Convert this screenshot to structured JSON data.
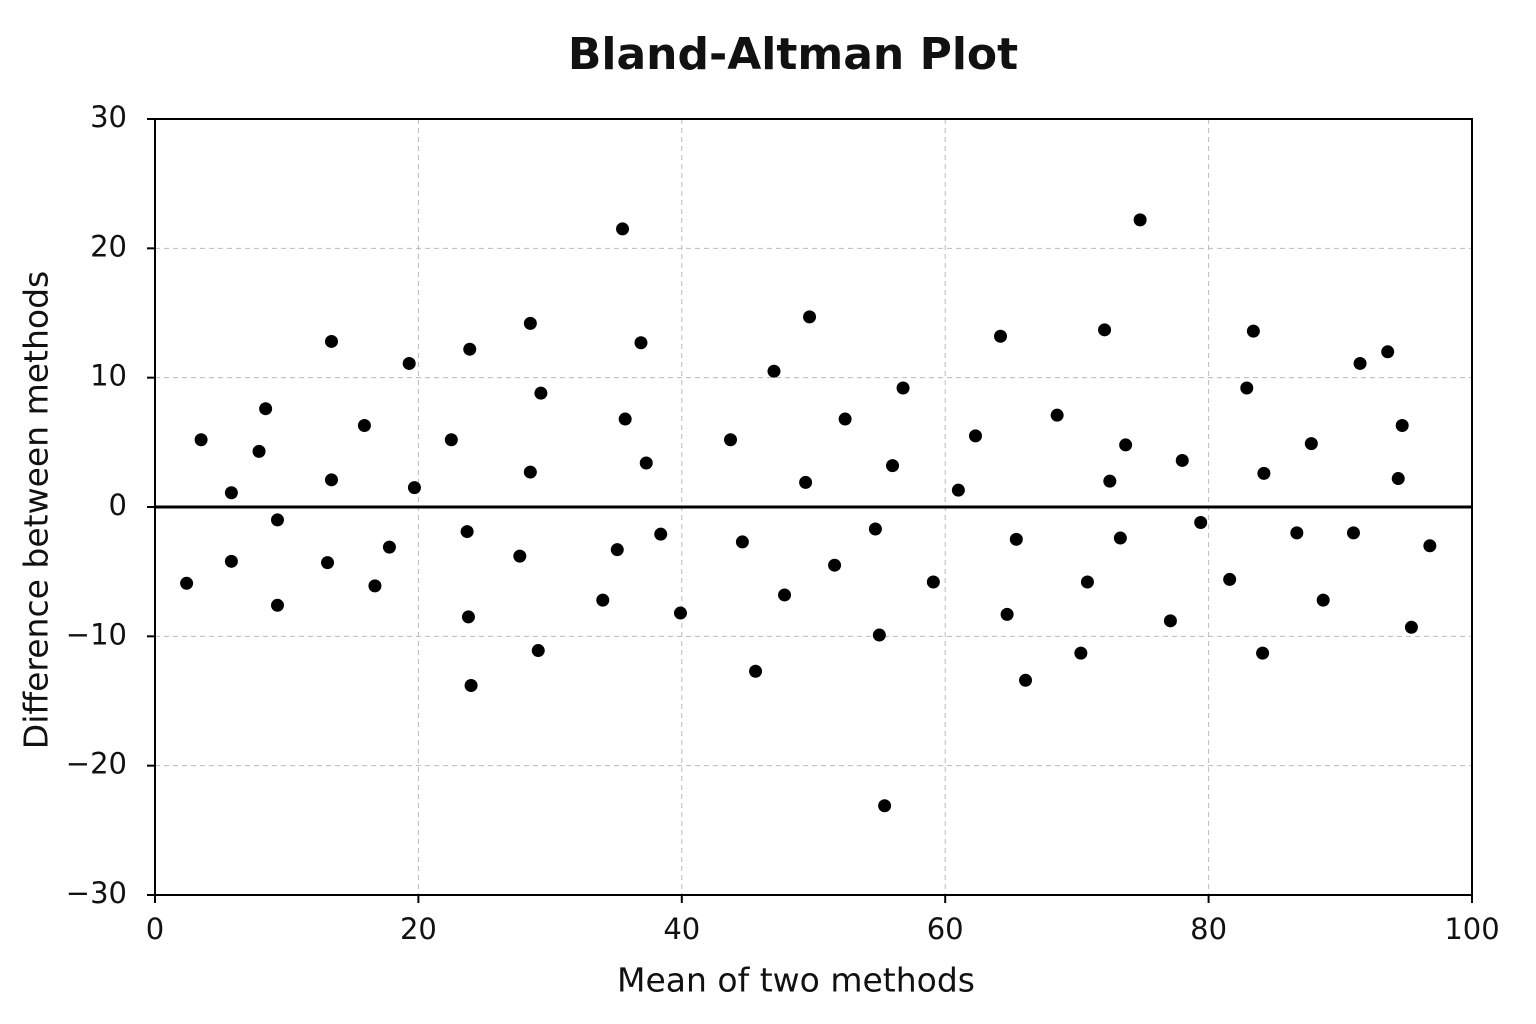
{
  "chart_data": {
    "type": "scatter",
    "title": "Bland-Altman Plot",
    "x_label": "Mean of two methods",
    "y_label": "Difference between methods",
    "color": "#000000",
    "grid": true,
    "reference_line": 0,
    "xlim": [
      0,
      100
    ],
    "xticks": [
      0,
      20,
      40,
      60,
      80,
      100
    ],
    "ylim": [
      -30,
      30
    ],
    "yticks": [
      {
        "value": -30,
        "label": "−30"
      },
      {
        "value": -20,
        "label": "−20"
      },
      {
        "value": -10,
        "label": "−10"
      },
      0,
      10,
      20,
      30
    ],
    "x": [
      2.4,
      3.5,
      5.8,
      5.8,
      7.9,
      8.4,
      9.3,
      9.3,
      13.1,
      13.4,
      13.4,
      15.9,
      16.7,
      17.8,
      19.3,
      19.7,
      22.5,
      23.7,
      23.9,
      23.8,
      24.0,
      27.7,
      28.5,
      28.5,
      29.1,
      29.3,
      34.0,
      35.1,
      35.5,
      35.7,
      36.9,
      37.3,
      38.4,
      39.9,
      43.7,
      44.6,
      45.6,
      47.0,
      47.8,
      49.4,
      49.7,
      51.6,
      52.4,
      54.7,
      55.0,
      55.4,
      56.0,
      56.8,
      59.1,
      61.0,
      62.3,
      64.2,
      64.7,
      65.4,
      66.1,
      68.5,
      70.3,
      70.8,
      72.1,
      72.5,
      73.3,
      73.7,
      74.8,
      77.1,
      78.0,
      79.4,
      81.6,
      82.9,
      83.4,
      84.1,
      84.2,
      86.7,
      87.8,
      88.7,
      91.0,
      91.5,
      93.6,
      94.4,
      94.7,
      95.4,
      96.8
    ],
    "values": [
      -5.9,
      5.2,
      1.1,
      -4.2,
      4.3,
      7.6,
      -1.0,
      -7.6,
      -4.3,
      2.1,
      12.8,
      6.3,
      -6.1,
      -3.1,
      11.1,
      1.5,
      5.2,
      -1.9,
      12.2,
      -8.5,
      -13.8,
      -3.8,
      14.2,
      2.7,
      -11.1,
      8.8,
      -7.2,
      -3.3,
      21.5,
      6.8,
      12.7,
      3.4,
      -2.1,
      -8.2,
      5.2,
      -2.7,
      -12.7,
      10.5,
      -6.8,
      1.9,
      14.7,
      -4.5,
      6.8,
      -1.7,
      -9.9,
      -23.1,
      3.2,
      9.2,
      -5.8,
      1.3,
      5.5,
      13.2,
      -8.3,
      -2.5,
      -13.4,
      7.1,
      -11.3,
      -5.8,
      13.7,
      2.0,
      -2.4,
      4.8,
      22.2,
      -8.8,
      3.6,
      -1.2,
      -5.6,
      9.2,
      13.6,
      -11.3,
      2.6,
      -2.0,
      4.9,
      -7.2,
      -2.0,
      11.1,
      12.0,
      2.2,
      6.3,
      -9.3,
      -3.0
    ]
  }
}
